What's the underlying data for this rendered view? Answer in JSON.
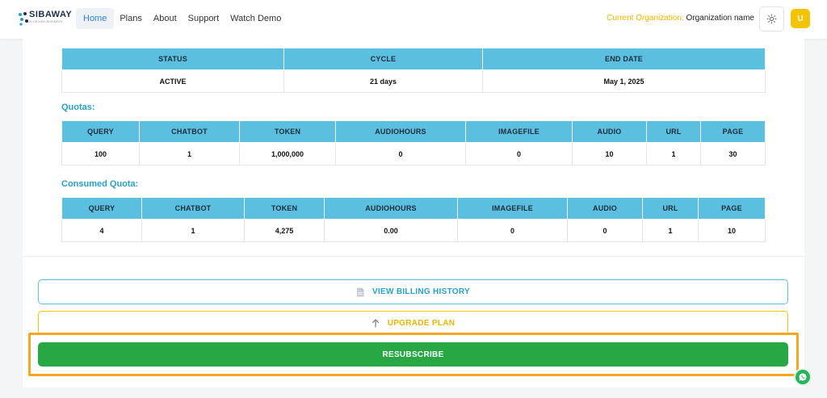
{
  "header": {
    "logo_text": "SIBAWAY",
    "logo_sub": "AI DRIVEN BUSINESS",
    "nav": [
      {
        "label": "Home",
        "active": true
      },
      {
        "label": "Plans"
      },
      {
        "label": "About"
      },
      {
        "label": "Support"
      },
      {
        "label": "Watch Demo"
      }
    ],
    "org_label": "Current Organization:",
    "org_value": "Organization name",
    "avatar": "U"
  },
  "subscription": {
    "headers": [
      "STATUS",
      "CYCLE",
      "END DATE"
    ],
    "row": [
      "ACTIVE",
      "21 days",
      "May 1, 2025"
    ]
  },
  "quotas": {
    "title": "Quotas:",
    "headers": [
      "QUERY",
      "CHATBOT",
      "TOKEN",
      "AUDIOHOURS",
      "IMAGEFILE",
      "AUDIO",
      "URL",
      "PAGE"
    ],
    "row": [
      "100",
      "1",
      "1,000,000",
      "0",
      "0",
      "10",
      "1",
      "30"
    ]
  },
  "consumed": {
    "title": "Consumed Quota:",
    "headers": [
      "QUERY",
      "CHATBOT",
      "TOKEN",
      "AUDIOHOURS",
      "IMAGEFILE",
      "AUDIO",
      "URL",
      "PAGE"
    ],
    "row": [
      "4",
      "1",
      "4,275",
      "0.00",
      "0",
      "0",
      "1",
      "10"
    ]
  },
  "actions": {
    "billing": "VIEW BILLING HISTORY",
    "upgrade": "UPGRADE PLAN",
    "resubscribe": "RESUBSCRIBE"
  },
  "colors": {
    "accent": "#5bbfe0",
    "upgrade": "#f5c400",
    "resubscribe": "#28a745",
    "highlight": "#f5a623"
  },
  "icons": {
    "billing": "document-icon",
    "upgrade": "arrow-up-icon",
    "theme": "sun-icon",
    "chat": "whatsapp-icon"
  }
}
